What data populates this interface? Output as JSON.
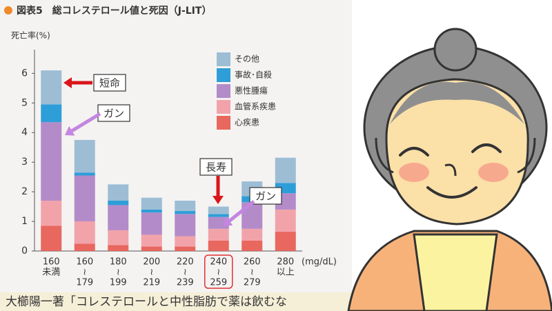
{
  "chart_data": {
    "type": "stacked_bar",
    "title": "図表5　総コレステロール値と死因（J-LIT）",
    "ylabel": "死亡率(%)",
    "xunit": "(mg/dL)",
    "categories": [
      [
        "160",
        "未満"
      ],
      [
        "160",
        "≀",
        "179"
      ],
      [
        "180",
        "≀",
        "199"
      ],
      [
        "200",
        "≀",
        "219"
      ],
      [
        "220",
        "≀",
        "239"
      ],
      [
        "240",
        "≀",
        "259"
      ],
      [
        "260",
        "≀",
        "279"
      ],
      [
        "280",
        "以上"
      ]
    ],
    "highlight_category_index": 5,
    "series": [
      {
        "name": "心疾患",
        "color": "#e8675f",
        "values": [
          0.85,
          0.25,
          0.2,
          0.15,
          0.15,
          0.35,
          0.35,
          0.65
        ]
      },
      {
        "name": "血管系疾患",
        "color": "#f2a3aa",
        "values": [
          0.85,
          0.75,
          0.5,
          0.4,
          0.35,
          0.4,
          0.4,
          0.75
        ]
      },
      {
        "name": "悪性腫瘍",
        "color": "#b48bc9",
        "values": [
          2.65,
          1.55,
          0.85,
          0.75,
          0.75,
          0.4,
          0.9,
          0.55
        ]
      },
      {
        "name": "事故･自殺",
        "color": "#2e9ed8",
        "values": [
          0.6,
          0.1,
          0.15,
          0.1,
          0.1,
          0.1,
          0.2,
          0.35
        ]
      },
      {
        "name": "その他",
        "color": "#9dbdd5",
        "values": [
          1.15,
          1.1,
          0.55,
          0.4,
          0.35,
          0.25,
          0.5,
          0.85
        ]
      }
    ],
    "ylim": [
      0,
      6.8
    ],
    "yticks": [
      0,
      1,
      2,
      3,
      4,
      5,
      6
    ],
    "annotations": [
      "短命",
      "ガン",
      "長寿",
      "ガン"
    ],
    "footer": "大櫛陽一著「コレステロールと中性脂肪で薬は飲むな"
  }
}
